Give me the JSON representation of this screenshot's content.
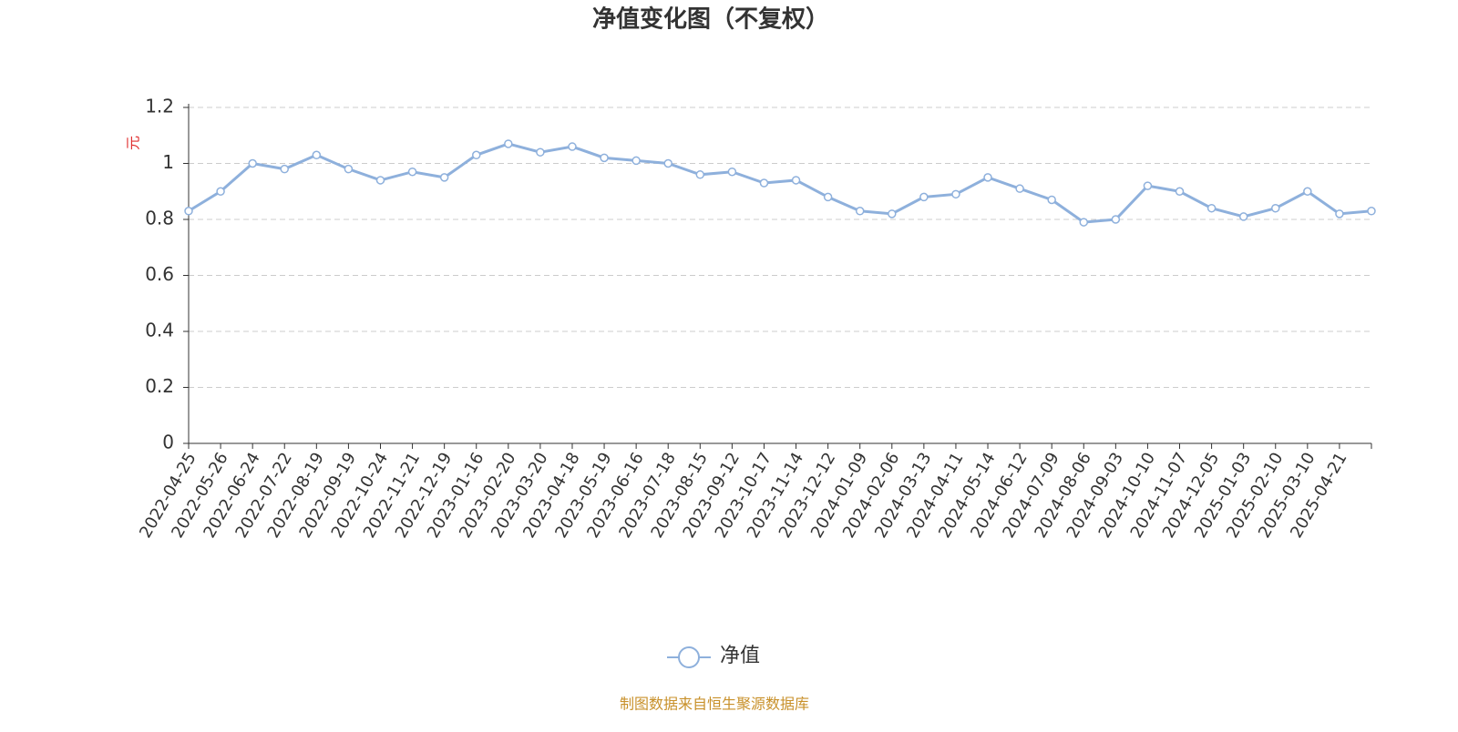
{
  "chart_data": {
    "type": "line",
    "title": "净值变化图（不复权）",
    "y_label": "元",
    "categories": [
      "2022-04-25",
      "2022-05-26",
      "2022-06-24",
      "2022-07-22",
      "2022-08-19",
      "2022-09-19",
      "2022-10-24",
      "2022-11-21",
      "2022-12-19",
      "2023-01-16",
      "2023-02-20",
      "2023-03-20",
      "2023-04-18",
      "2023-05-19",
      "2023-06-16",
      "2023-07-18",
      "2023-08-15",
      "2023-09-12",
      "2023-10-17",
      "2023-11-14",
      "2023-12-12",
      "2024-01-09",
      "2024-02-06",
      "2024-03-13",
      "2024-04-11",
      "2024-05-14",
      "2024-06-12",
      "2024-07-09",
      "2024-08-06",
      "2024-09-03",
      "2024-10-10",
      "2024-11-07",
      "2024-12-05",
      "2025-01-03",
      "2025-02-10",
      "2025-03-10",
      "2025-04-21",
      null
    ],
    "series": [
      {
        "name": "净值",
        "color": "#8eb0dc",
        "values": [
          0.83,
          0.9,
          1.0,
          0.98,
          1.03,
          0.98,
          0.94,
          0.97,
          0.95,
          1.03,
          1.07,
          1.04,
          1.06,
          1.02,
          1.01,
          1.0,
          0.96,
          0.97,
          0.93,
          0.94,
          0.88,
          0.83,
          0.82,
          0.88,
          0.89,
          0.95,
          0.91,
          0.87,
          0.79,
          0.8,
          0.92,
          0.9,
          0.84,
          0.81,
          0.84,
          0.9,
          0.82,
          0.83
        ]
      }
    ],
    "ylim": [
      0,
      1.2
    ],
    "yticks": [
      0,
      0.2,
      0.4,
      0.6,
      0.8,
      1,
      1.2
    ],
    "grid": true,
    "source": "制图数据来自恒生聚源数据库"
  }
}
